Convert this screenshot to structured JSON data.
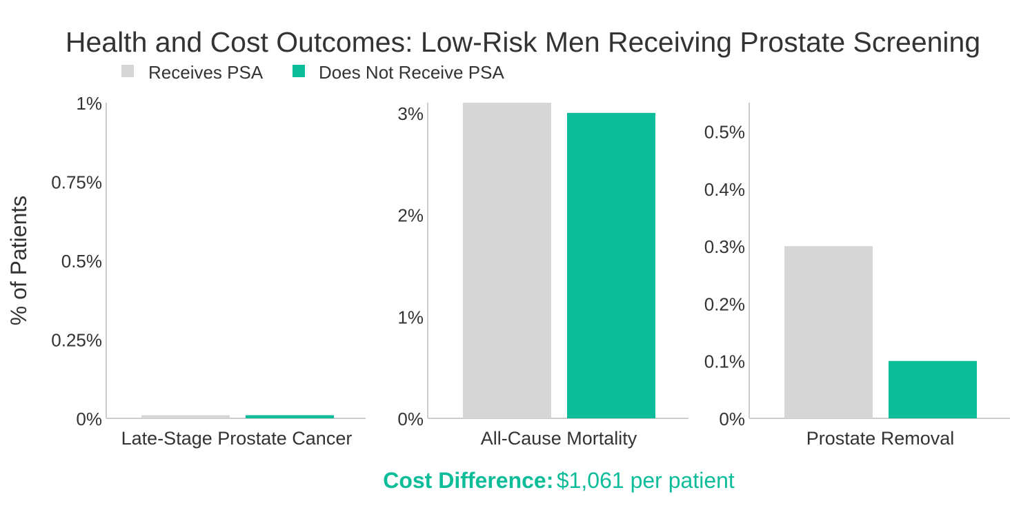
{
  "chart_data": {
    "title": "Health and Cost Outcomes: Low-Risk Men Receiving Prostate Screening",
    "ylabel": "% of Patients",
    "legend": [
      {
        "label": "Receives PSA",
        "color": "#d6d6d6"
      },
      {
        "label": "Does Not Receive PSA",
        "color": "#0dbc99"
      }
    ],
    "panels": [
      {
        "type": "bar",
        "category": "Late-Stage Prostate Cancer",
        "ylim": [
          0,
          1
        ],
        "ticks": [
          {
            "value": 0,
            "label": "0%"
          },
          {
            "value": 0.25,
            "label": "0.25%"
          },
          {
            "value": 0.5,
            "label": "0.5%"
          },
          {
            "value": 0.75,
            "label": "0.75%"
          },
          {
            "value": 1,
            "label": "1%"
          }
        ],
        "series": [
          {
            "name": "Receives PSA",
            "value": 0.01
          },
          {
            "name": "Does Not Receive PSA",
            "value": 0.01
          }
        ]
      },
      {
        "type": "bar",
        "category": "All-Cause Mortality",
        "ylim": [
          0,
          3.1
        ],
        "ticks": [
          {
            "value": 0,
            "label": "0%"
          },
          {
            "value": 1,
            "label": "1%"
          },
          {
            "value": 2,
            "label": "2%"
          },
          {
            "value": 3,
            "label": "3%"
          }
        ],
        "series": [
          {
            "name": "Receives PSA",
            "value": 3.1
          },
          {
            "name": "Does Not Receive PSA",
            "value": 3.0
          }
        ]
      },
      {
        "type": "bar",
        "category": "Prostate Removal",
        "ylim": [
          0,
          0.55
        ],
        "ticks": [
          {
            "value": 0,
            "label": "0%"
          },
          {
            "value": 0.1,
            "label": "0.1%"
          },
          {
            "value": 0.2,
            "label": "0.2%"
          },
          {
            "value": 0.3,
            "label": "0.3%"
          },
          {
            "value": 0.4,
            "label": "0.4%"
          },
          {
            "value": 0.5,
            "label": "0.5%"
          }
        ],
        "series": [
          {
            "name": "Receives PSA",
            "value": 0.3
          },
          {
            "name": "Does Not Receive PSA",
            "value": 0.1
          }
        ]
      }
    ]
  },
  "footer": {
    "label": "Cost Difference:",
    "value": "$1,061 per patient"
  },
  "colors": {
    "text": "#333333",
    "axis": "#cccccc",
    "accent": "#0dbc99"
  }
}
